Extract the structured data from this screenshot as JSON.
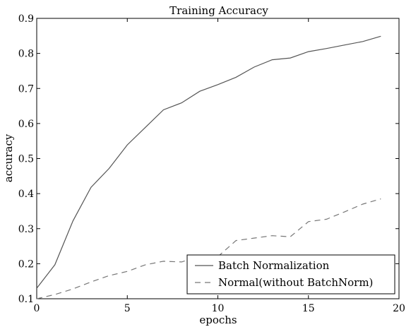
{
  "chart_data": {
    "type": "line",
    "title": "Training Accuracy",
    "xlabel": "epochs",
    "ylabel": "accuracy",
    "xlim": [
      0,
      20
    ],
    "ylim": [
      0.1,
      0.9
    ],
    "xticks": [
      0,
      5,
      10,
      15,
      20
    ],
    "yticks": [
      0.1,
      0.2,
      0.3,
      0.4,
      0.5,
      0.6,
      0.7,
      0.8,
      0.9
    ],
    "grid": false,
    "legend_position": "bottom-right",
    "x": [
      0,
      1,
      2,
      3,
      4,
      5,
      6,
      7,
      8,
      9,
      10,
      11,
      12,
      13,
      14,
      15,
      16,
      17,
      18,
      19
    ],
    "series": [
      {
        "name": "Batch Normalization",
        "style": "solid",
        "color": "#555555",
        "values": [
          0.13,
          0.197,
          0.322,
          0.418,
          0.472,
          0.539,
          0.589,
          0.639,
          0.659,
          0.692,
          0.711,
          0.732,
          0.761,
          0.782,
          0.787,
          0.805,
          0.814,
          0.824,
          0.834,
          0.849
        ]
      },
      {
        "name": "Normal(without BatchNorm)",
        "style": "dashed",
        "color": "#777777",
        "values": [
          0.1,
          0.112,
          0.128,
          0.148,
          0.166,
          0.178,
          0.197,
          0.207,
          0.205,
          0.222,
          0.22,
          0.266,
          0.273,
          0.28,
          0.277,
          0.32,
          0.327,
          0.348,
          0.37,
          0.385
        ]
      }
    ]
  }
}
